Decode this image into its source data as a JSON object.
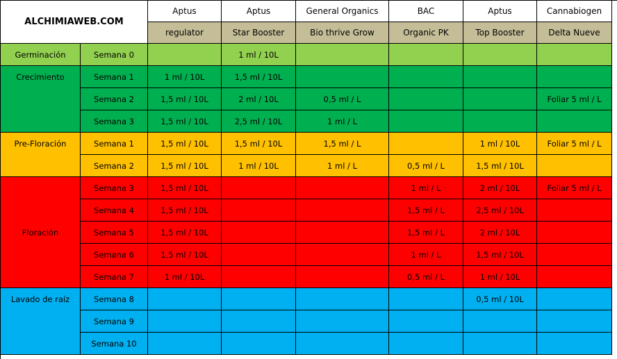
{
  "site_title": "ALCHIMIAWEB.COM",
  "brands": [
    "Aptus",
    "Aptus",
    "General Organics",
    "BAC",
    "Aptus",
    "Cannabiogen"
  ],
  "products": [
    "regulator",
    "Star Booster",
    "Bio thrive Grow",
    "Organic PK",
    "Top Booster",
    "Delta Nueve"
  ],
  "stages": [
    {
      "name": "Germinación",
      "color": "#92d050",
      "weeks": [
        {
          "week": "Semana 0",
          "doses": [
            "",
            "1 ml / 10L",
            "",
            "",
            "",
            ""
          ]
        }
      ]
    },
    {
      "name": "Crecimiento",
      "color": "#00b050",
      "weeks": [
        {
          "week": "Semana 1",
          "doses": [
            "1 ml / 10L",
            "1,5 ml / 10L",
            "",
            "",
            "",
            ""
          ]
        },
        {
          "week": "Semana 2",
          "doses": [
            "1,5 ml / 10L",
            "2 ml / 10L",
            "0,5 ml / L",
            "",
            "",
            "Foliar 5 ml / L"
          ]
        },
        {
          "week": "Semana 3",
          "doses": [
            "1,5 ml / 10L",
            "2,5 ml / 10L",
            "1 ml / L",
            "",
            "",
            ""
          ]
        }
      ]
    },
    {
      "name": "Pre-Floración",
      "color": "#ffc000",
      "weeks": [
        {
          "week": "Semana 1",
          "doses": [
            "1,5 ml / 10L",
            "1,5 ml / 10L",
            "1,5 ml / L",
            "",
            "1 ml / 10L",
            "Foliar 5 ml / L"
          ]
        },
        {
          "week": "Semana 2",
          "doses": [
            "1,5 ml / 10L",
            "1 ml / 10L",
            "1 ml / L",
            "0,5 ml / L",
            "1,5 ml / 10L",
            ""
          ]
        }
      ]
    },
    {
      "name": "Floración",
      "color": "#ff0000",
      "weeks": [
        {
          "week": "Semana 3",
          "doses": [
            "1,5 ml / 10L",
            "",
            "",
            "1 ml / L",
            "2 ml / 10L",
            "Foliar 5 ml / L"
          ]
        },
        {
          "week": "Semana 4",
          "doses": [
            "1,5 ml / 10L",
            "",
            "",
            "1,5 ml / L",
            "2,5 ml / 10L",
            ""
          ]
        },
        {
          "week": "Semana 5",
          "doses": [
            "1,5 ml / 10L",
            "",
            "",
            "1,5 ml / L",
            "2 ml / 10L",
            ""
          ]
        },
        {
          "week": "Semana 6",
          "doses": [
            "1,5 ml / 10L",
            "",
            "",
            "1 ml / L",
            "1,5 ml / 10L",
            ""
          ]
        },
        {
          "week": "Semana 7",
          "doses": [
            "1 ml / 10L",
            "",
            "",
            "0,5 ml / L",
            "1 ml / 10L",
            ""
          ]
        }
      ]
    },
    {
      "name": "Lavado de raíz",
      "color": "#00b0f0",
      "weeks": [
        {
          "week": "Semana 8",
          "doses": [
            "",
            "",
            "",
            "",
            "0,5 ml / 10L",
            ""
          ]
        },
        {
          "week": "Semana 9",
          "doses": [
            "",
            "",
            "",
            "",
            "",
            ""
          ]
        },
        {
          "week": "Semana 10",
          "doses": [
            "",
            "",
            "",
            "",
            "",
            ""
          ]
        }
      ]
    }
  ]
}
